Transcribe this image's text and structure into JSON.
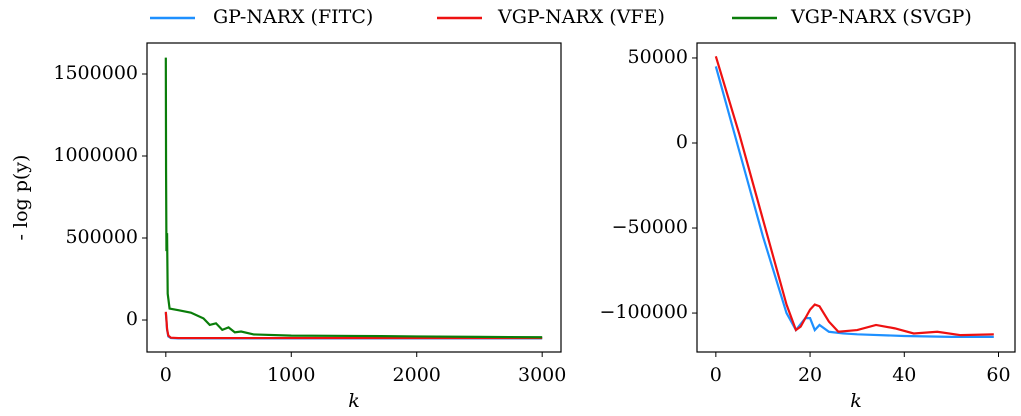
{
  "chart_data": [
    {
      "type": "line",
      "ylabel": "- log p(y)",
      "xlabel": "k",
      "xlim": [
        -150,
        3150
      ],
      "ylim": [
        -195000,
        1689000
      ],
      "xticks": [
        0,
        1000,
        2000,
        3000
      ],
      "yticks": [
        0,
        500000,
        1000000,
        1500000
      ],
      "series": [
        {
          "name": "GP-NARX (FITC)",
          "color": "#1e90ff",
          "x": [
            0,
            5,
            10,
            20,
            40,
            100,
            500,
            1000,
            2000,
            3000
          ],
          "values": [
            45000,
            -5000,
            -60000,
            -100000,
            -110000,
            -112000,
            -112000,
            -112000,
            -112000,
            -112000
          ]
        },
        {
          "name": "VGP-NARX (VFE)",
          "color": "#ee1111",
          "x": [
            0,
            5,
            10,
            20,
            40,
            100,
            500,
            1000,
            2000,
            3000
          ],
          "values": [
            50000,
            0,
            -55000,
            -95000,
            -108000,
            -110000,
            -110000,
            -110000,
            -110000,
            -110000
          ]
        },
        {
          "name": "VGP-NARX (SVGP)",
          "color": "#0a7d0a",
          "x": [
            0,
            2,
            5,
            10,
            15,
            30,
            100,
            200,
            300,
            350,
            400,
            450,
            500,
            550,
            600,
            700,
            1000,
            1500,
            2000,
            2500,
            3000
          ],
          "values": [
            1600000,
            900000,
            420000,
            530000,
            160000,
            70000,
            60000,
            45000,
            10000,
            -30000,
            -20000,
            -60000,
            -45000,
            -75000,
            -70000,
            -88000,
            -95000,
            -97000,
            -100000,
            -103000,
            -105000
          ]
        }
      ]
    },
    {
      "type": "line",
      "xlabel": "k",
      "xlim": [
        -4,
        63.5
      ],
      "ylim": [
        -122900,
        58800
      ],
      "xticks": [
        0,
        20,
        40,
        60
      ],
      "yticks": [
        {
          "value": -100000,
          "label": "−100000"
        },
        {
          "value": -50000,
          "label": "−50000"
        },
        0,
        50000
      ],
      "series": [
        {
          "color": "#1e90ff",
          "x": [
            0,
            5,
            10,
            15,
            17,
            19,
            20,
            21,
            22,
            24,
            27,
            30,
            40,
            50,
            59
          ],
          "values": [
            45000,
            -5000,
            -55000,
            -100000,
            -110000,
            -103000,
            -103000,
            -110000,
            -107000,
            -111000,
            -112000,
            -112500,
            -113500,
            -114000,
            -114000
          ]
        },
        {
          "color": "#ee1111",
          "x": [
            0,
            5,
            10,
            15,
            17,
            18,
            20,
            21,
            22,
            24,
            26,
            30,
            34,
            38,
            42,
            47,
            52,
            59
          ],
          "values": [
            51000,
            5000,
            -45000,
            -95000,
            -110000,
            -108000,
            -98000,
            -95000,
            -96000,
            -105000,
            -111000,
            -110000,
            -107000,
            -109000,
            -112000,
            -111000,
            -113000,
            -112500
          ]
        }
      ]
    }
  ]
}
